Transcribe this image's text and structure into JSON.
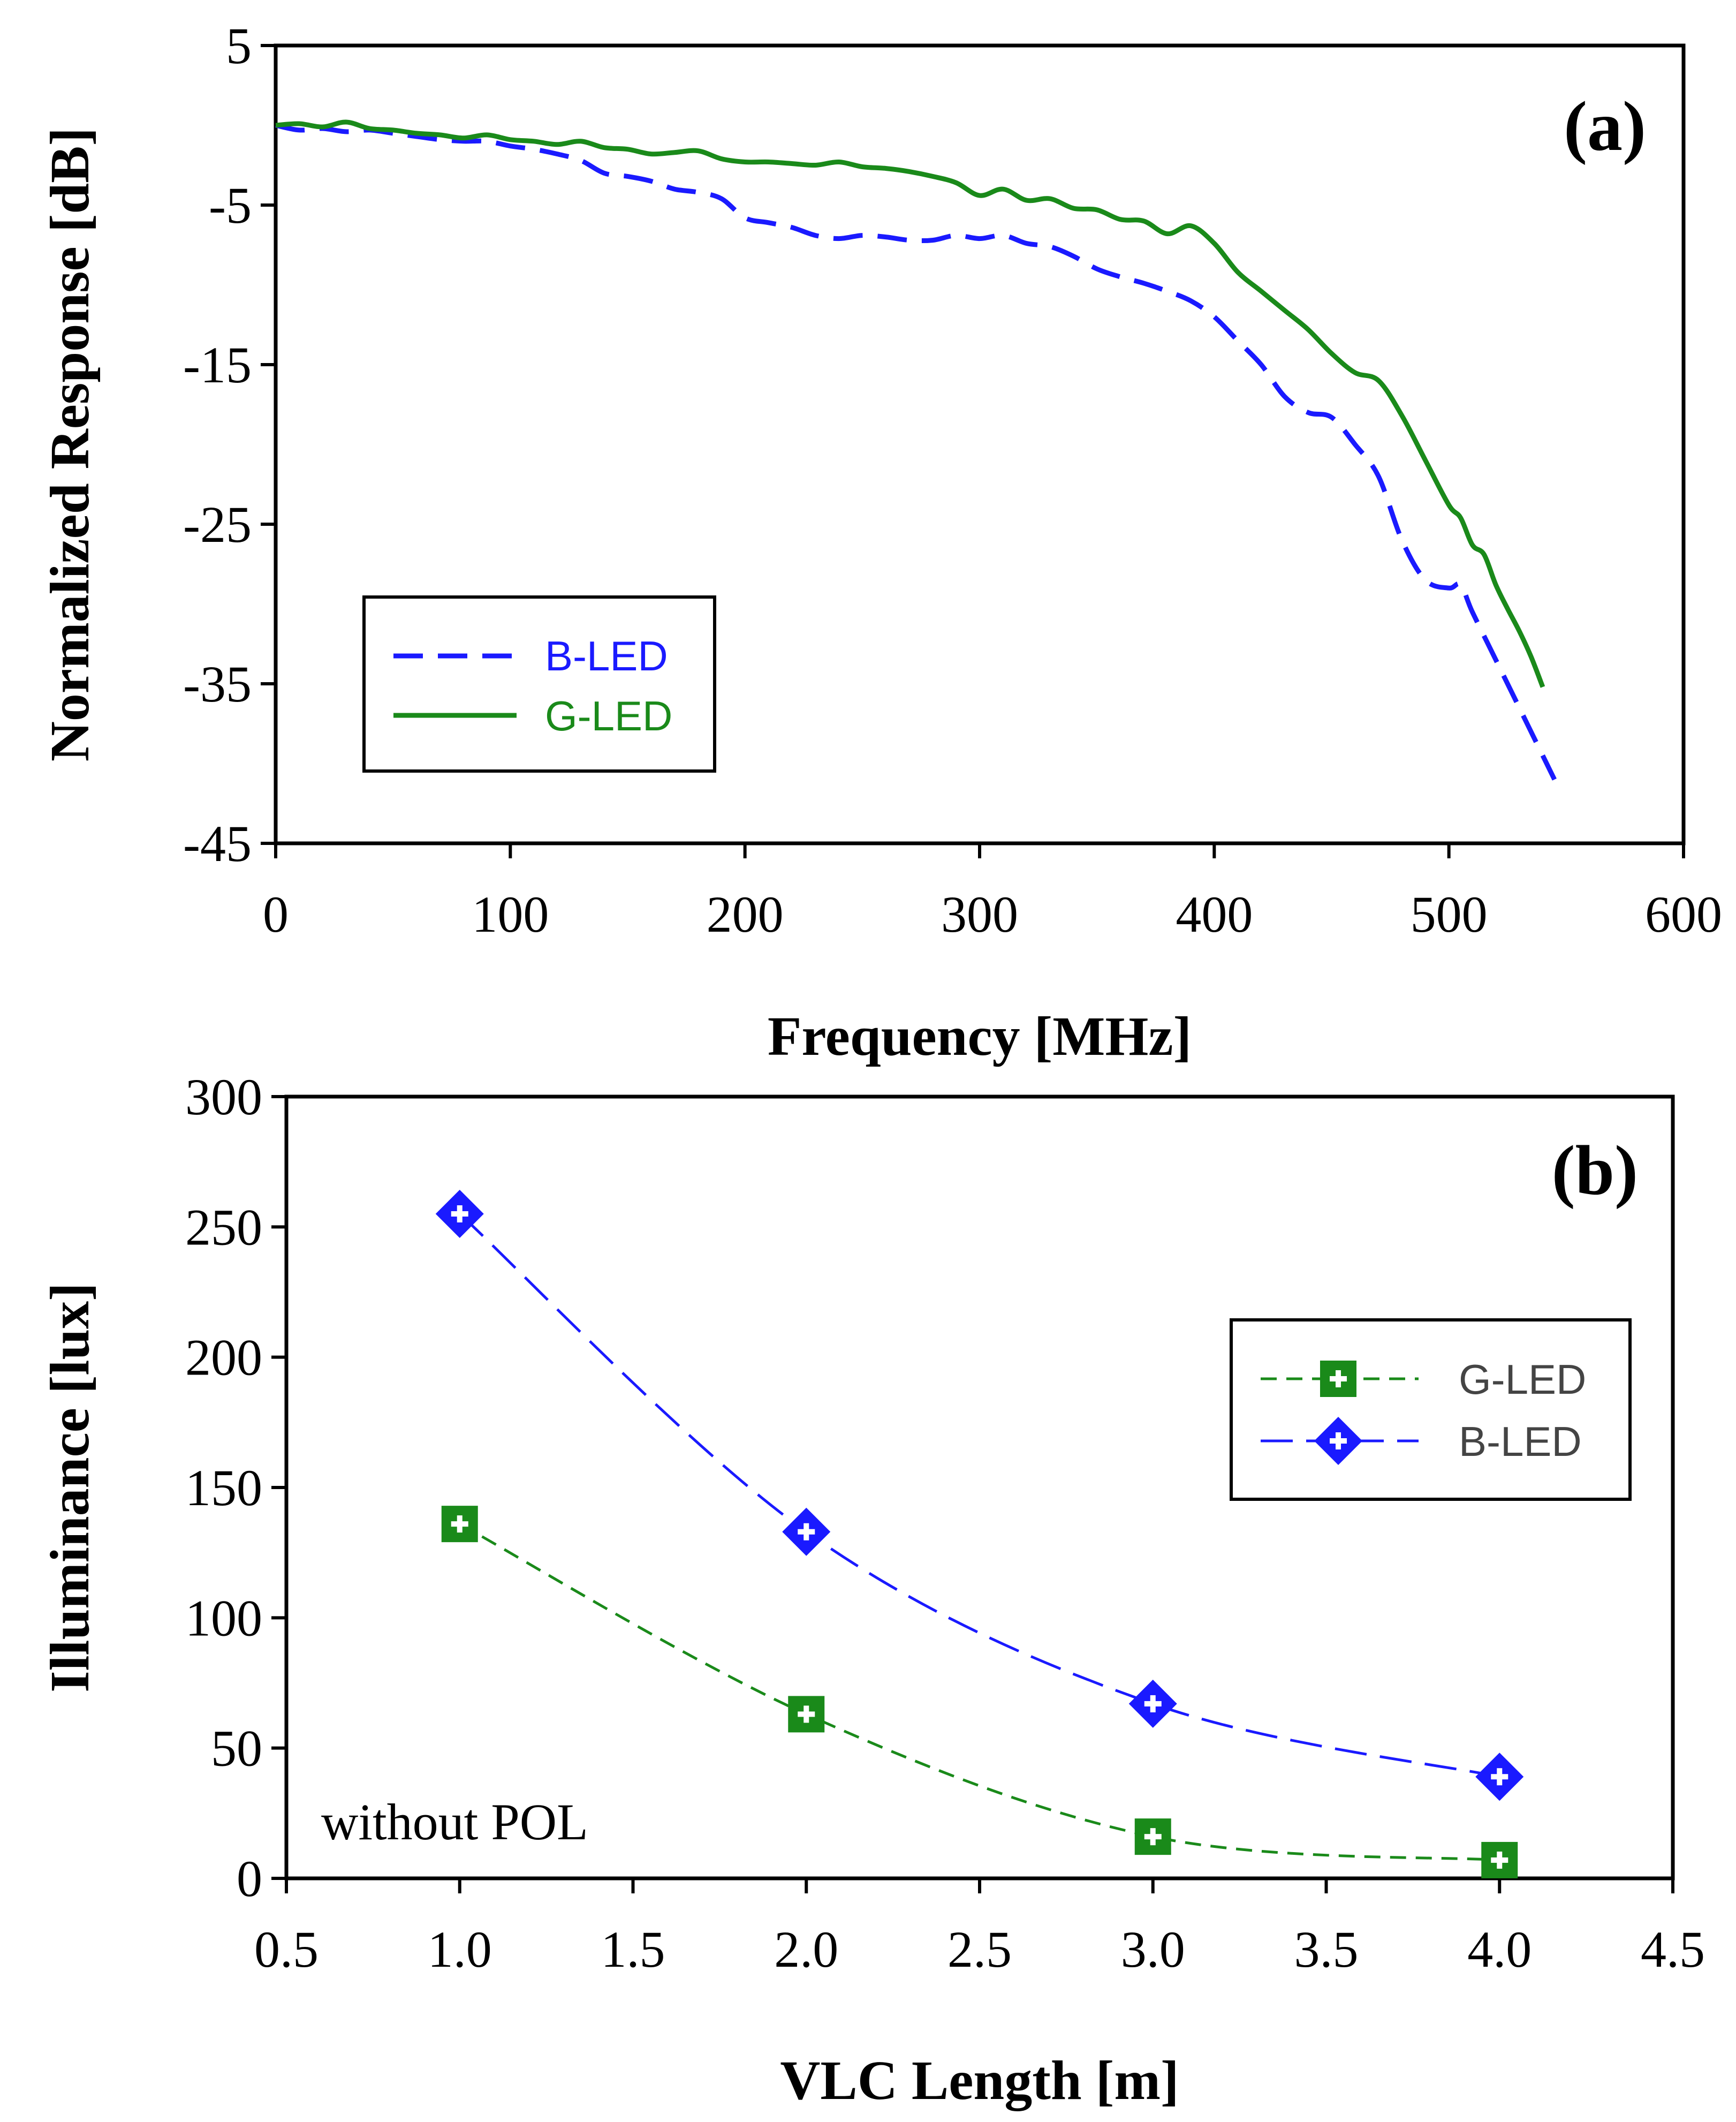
{
  "colors": {
    "blue": "#1a1aff",
    "green": "#1a8a1a",
    "axis": "#000000"
  },
  "chart_data": [
    {
      "id": "a",
      "type": "line",
      "panel_label": "(a)",
      "title": "",
      "xlabel": "Frequency [MHz]",
      "ylabel": "Normalized Response [dB]",
      "xlim": [
        0,
        600
      ],
      "ylim": [
        -45,
        5
      ],
      "xticks": [
        0,
        100,
        200,
        300,
        400,
        500,
        600
      ],
      "yticks": [
        5,
        -5,
        -15,
        -25,
        -35,
        -45
      ],
      "grid": false,
      "legend_position": "bottom-left",
      "series": [
        {
          "name": "B-LED",
          "color": "#1a1aff",
          "style": "dashed",
          "x": [
            0,
            10,
            20,
            30,
            40,
            50,
            60,
            70,
            80,
            90,
            100,
            110,
            120,
            130,
            140,
            150,
            160,
            170,
            180,
            190,
            200,
            210,
            220,
            230,
            240,
            250,
            260,
            270,
            280,
            290,
            300,
            310,
            320,
            330,
            340,
            350,
            360,
            370,
            380,
            390,
            400,
            410,
            420,
            430,
            440,
            450,
            460,
            470,
            480,
            490,
            500,
            505,
            510,
            520,
            530,
            540,
            545
          ],
          "y": [
            0,
            -0.3,
            -0.2,
            -0.4,
            -0.3,
            -0.5,
            -0.7,
            -0.9,
            -1.0,
            -1.0,
            -1.3,
            -1.5,
            -1.8,
            -2.2,
            -3.0,
            -3.2,
            -3.5,
            -4.0,
            -4.2,
            -4.6,
            -5.8,
            -6.1,
            -6.4,
            -6.9,
            -7.1,
            -6.9,
            -7.0,
            -7.2,
            -7.2,
            -6.9,
            -7.1,
            -6.9,
            -7.4,
            -7.6,
            -8.2,
            -9.0,
            -9.5,
            -9.9,
            -10.4,
            -11.0,
            -12.0,
            -13.5,
            -15.0,
            -17.0,
            -18.0,
            -18.3,
            -20.0,
            -22.0,
            -26.0,
            -28.5,
            -29.0,
            -28.8,
            -30.5,
            -33.5,
            -36.5,
            -39.5,
            -41.0
          ]
        },
        {
          "name": "G-LED",
          "color": "#1a8a1a",
          "style": "solid",
          "x": [
            0,
            10,
            20,
            30,
            40,
            50,
            60,
            70,
            80,
            90,
            100,
            110,
            120,
            130,
            140,
            150,
            160,
            170,
            180,
            190,
            200,
            210,
            220,
            230,
            240,
            250,
            260,
            270,
            280,
            290,
            300,
            310,
            320,
            330,
            340,
            350,
            360,
            370,
            380,
            390,
            400,
            410,
            420,
            430,
            440,
            450,
            460,
            470,
            480,
            490,
            500,
            505,
            510,
            515,
            520,
            525,
            530,
            535,
            540
          ],
          "y": [
            0,
            0.1,
            -0.1,
            0.2,
            -0.2,
            -0.3,
            -0.5,
            -0.6,
            -0.8,
            -0.6,
            -0.9,
            -1.0,
            -1.2,
            -1.0,
            -1.4,
            -1.5,
            -1.8,
            -1.7,
            -1.6,
            -2.1,
            -2.3,
            -2.3,
            -2.4,
            -2.5,
            -2.3,
            -2.6,
            -2.7,
            -2.9,
            -3.2,
            -3.6,
            -4.4,
            -4.0,
            -4.7,
            -4.6,
            -5.2,
            -5.3,
            -5.9,
            -6.0,
            -6.8,
            -6.3,
            -7.4,
            -9.2,
            -10.4,
            -11.6,
            -12.8,
            -14.3,
            -15.5,
            -16.0,
            -18.2,
            -21.0,
            -23.8,
            -24.6,
            -26.3,
            -26.9,
            -28.8,
            -30.3,
            -31.7,
            -33.3,
            -35.2
          ]
        }
      ]
    },
    {
      "id": "b",
      "type": "line",
      "panel_label": "(b)",
      "title": "",
      "xlabel": "VLC Length [m]",
      "ylabel": "Illuminance [lux]",
      "xlim": [
        0.5,
        4.5
      ],
      "ylim": [
        0,
        300
      ],
      "xticks": [
        "0.5",
        "1.0",
        "1.5",
        "2.0",
        "2.5",
        "3.0",
        "3.5",
        "4.0",
        "4.5"
      ],
      "yticks": [
        0,
        50,
        100,
        150,
        200,
        250,
        300
      ],
      "grid": false,
      "legend_position": "top-right",
      "annotation": "without POL",
      "series": [
        {
          "name": "G-LED",
          "color": "#1a8a1a",
          "marker": "square-plus",
          "style": "dashed",
          "x": [
            1.0,
            2.0,
            3.0,
            4.0
          ],
          "y": [
            136,
            63,
            16,
            7
          ]
        },
        {
          "name": "B-LED",
          "color": "#1a1aff",
          "marker": "diamond-plus",
          "style": "long-dashed",
          "x": [
            1.0,
            2.0,
            3.0,
            4.0
          ],
          "y": [
            255,
            133,
            67,
            39
          ]
        }
      ]
    }
  ]
}
